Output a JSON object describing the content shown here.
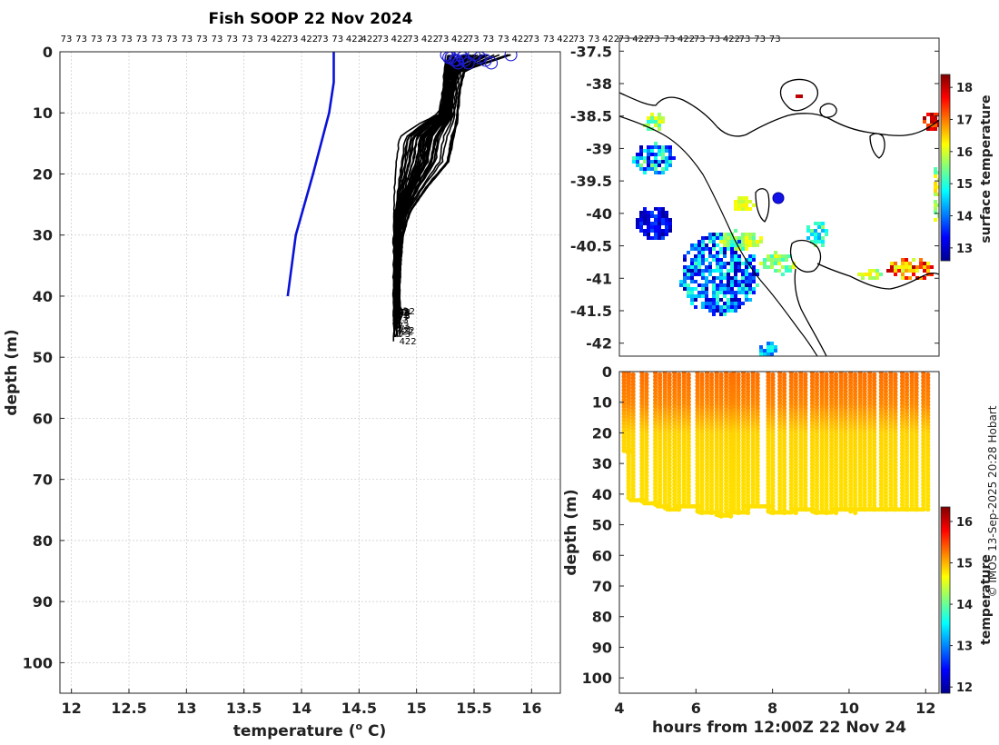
{
  "title": "Fish SOOP 22 Nov 2024",
  "credit": "© IMOS 13-Sep-2025 20:28 Hobart",
  "colors": {
    "profile": "#000000",
    "reference": "#0a12d8",
    "surface_marker": "#1b1bd8",
    "grid": "#c8c8c8"
  },
  "profile_ids": [
    "73",
    "73",
    "73",
    "73",
    "73",
    "73",
    "73",
    "73",
    "73",
    "73",
    "73",
    "73",
    "73",
    "73",
    "422",
    "73",
    "422",
    "73",
    "73",
    "422",
    "422",
    "73",
    "422",
    "73",
    "422",
    "73",
    "422",
    "73",
    "73",
    "73",
    "422",
    "73",
    "73",
    "422",
    "73",
    "73",
    "422",
    "73",
    "422",
    "73",
    "73",
    "422",
    "73",
    "73",
    "422",
    "73",
    "73",
    "73"
  ],
  "chart_data": [
    {
      "type": "line",
      "panel": "temperature-profiles",
      "xlabel": "temperature (",
      "xlabel_sup": "o",
      "xlabel_tail": " C)",
      "ylabel": "depth (m)",
      "xlim": [
        11.9,
        16.25
      ],
      "ylim": [
        105,
        0
      ],
      "x_ticks": [
        "12",
        "12.5",
        "13",
        "13.5",
        "14",
        "14.5",
        "15",
        "15.5",
        "16"
      ],
      "x_tick_values": [
        12,
        12.5,
        13,
        13.5,
        14,
        14.5,
        15,
        15.5,
        16
      ],
      "y_ticks": [
        "0",
        "10",
        "20",
        "30",
        "40",
        "50",
        "60",
        "70",
        "80",
        "90",
        "100"
      ],
      "y_tick_values": [
        0,
        10,
        20,
        30,
        40,
        50,
        60,
        70,
        80,
        90,
        100
      ],
      "grid": true,
      "series": [
        {
          "points": [
            [
              14.28,
              0
            ],
            [
              14.28,
              5
            ],
            [
              14.24,
              10
            ],
            [
              14.1,
              20
            ],
            [
              13.95,
              30
            ],
            [
              13.88,
              40
            ]
          ]
        }
      ],
      "profile_envelope": {
        "count": 48,
        "depth": [
          0.5,
          3,
          6,
          10,
          12,
          14,
          18,
          22,
          26,
          30,
          35,
          40,
          44,
          47
        ],
        "temp_low": [
          15.25,
          15.24,
          15.23,
          15.2,
          15.0,
          14.85,
          14.82,
          14.81,
          14.8,
          14.8,
          14.8,
          14.8,
          14.8,
          14.8
        ],
        "temp_high": [
          15.82,
          15.42,
          15.38,
          15.36,
          15.35,
          15.32,
          15.28,
          15.1,
          14.95,
          14.88,
          14.86,
          14.85,
          14.86,
          14.86
        ]
      },
      "surface_marker_temps": [
        15.26,
        15.3,
        15.33,
        15.36,
        15.38,
        15.4,
        15.42,
        15.45,
        15.5,
        15.55,
        15.6,
        15.65,
        15.82,
        15.28,
        15.35
      ]
    },
    {
      "type": "heatmap",
      "panel": "surface-temperature-map",
      "ylim": [
        -42.2,
        -37.3
      ],
      "y_ticks": [
        "-37.5",
        "-38",
        "-38.5",
        "-39",
        "-39.5",
        "-40",
        "-40.5",
        "-41",
        "-41.5",
        "-42"
      ],
      "y_tick_values": [
        -37.5,
        -38,
        -38.5,
        -39,
        -39.5,
        -40,
        -40.5,
        -41,
        -41.5,
        -42
      ],
      "colorbar": {
        "label": "surface temperature",
        "range": [
          12.6,
          18.4
        ],
        "ticks": [
          "13",
          "14",
          "15",
          "16",
          "17",
          "18"
        ],
        "tick_values": [
          13,
          14,
          15,
          16,
          17,
          18
        ]
      },
      "vessel_position": {
        "lat": -39.7,
        "temperature": 13.0
      }
    },
    {
      "type": "scatter",
      "panel": "depth-time-section",
      "xlabel": "hours from 12:00Z 22 Nov 24",
      "ylabel": "depth (m)",
      "xlim": [
        4,
        12.35
      ],
      "ylim": [
        105,
        0
      ],
      "x_ticks": [
        "4",
        "6",
        "8",
        "10",
        "12"
      ],
      "x_tick_values": [
        4,
        6,
        8,
        10,
        12
      ],
      "y_ticks": [
        "0",
        "10",
        "20",
        "30",
        "40",
        "50",
        "60",
        "70",
        "80",
        "90",
        "100"
      ],
      "y_tick_values": [
        0,
        10,
        20,
        30,
        40,
        50,
        60,
        70,
        80,
        90,
        100
      ],
      "colorbar": {
        "label": "temperature",
        "range": [
          11.85,
          16.35
        ],
        "ticks": [
          "12",
          "13",
          "14",
          "15",
          "16"
        ],
        "tick_values": [
          12,
          13,
          14,
          15,
          16
        ]
      },
      "casts": [
        {
          "x": 4.18,
          "max_depth": 26
        },
        {
          "x": 4.3,
          "max_depth": 42
        },
        {
          "x": 4.65,
          "max_depth": 43
        },
        {
          "x": 5.0,
          "max_depth": 44
        },
        {
          "x": 5.25,
          "max_depth": 45
        },
        {
          "x": 5.5,
          "max_depth": 45
        },
        {
          "x": 5.75,
          "max_depth": 44
        },
        {
          "x": 6.1,
          "max_depth": 46
        },
        {
          "x": 6.35,
          "max_depth": 46
        },
        {
          "x": 6.6,
          "max_depth": 47
        },
        {
          "x": 6.85,
          "max_depth": 47
        },
        {
          "x": 7.05,
          "max_depth": 46
        },
        {
          "x": 7.3,
          "max_depth": 46
        },
        {
          "x": 7.55,
          "max_depth": 44
        },
        {
          "x": 7.95,
          "max_depth": 46
        },
        {
          "x": 8.25,
          "max_depth": 46
        },
        {
          "x": 8.55,
          "max_depth": 46
        },
        {
          "x": 8.8,
          "max_depth": 45
        },
        {
          "x": 9.1,
          "max_depth": 46
        },
        {
          "x": 9.35,
          "max_depth": 46
        },
        {
          "x": 9.6,
          "max_depth": 46
        },
        {
          "x": 9.85,
          "max_depth": 45
        },
        {
          "x": 10.1,
          "max_depth": 46
        },
        {
          "x": 10.35,
          "max_depth": 45
        },
        {
          "x": 10.6,
          "max_depth": 45
        },
        {
          "x": 10.9,
          "max_depth": 45
        },
        {
          "x": 11.15,
          "max_depth": 45
        },
        {
          "x": 11.45,
          "max_depth": 45
        },
        {
          "x": 11.7,
          "max_depth": 45
        },
        {
          "x": 12.0,
          "max_depth": 45
        }
      ],
      "temperature_profile": {
        "depth": [
          0,
          10,
          20,
          30,
          40,
          47
        ],
        "temperature": [
          15.3,
          15.2,
          14.85,
          14.82,
          14.8,
          14.8
        ]
      }
    }
  ]
}
